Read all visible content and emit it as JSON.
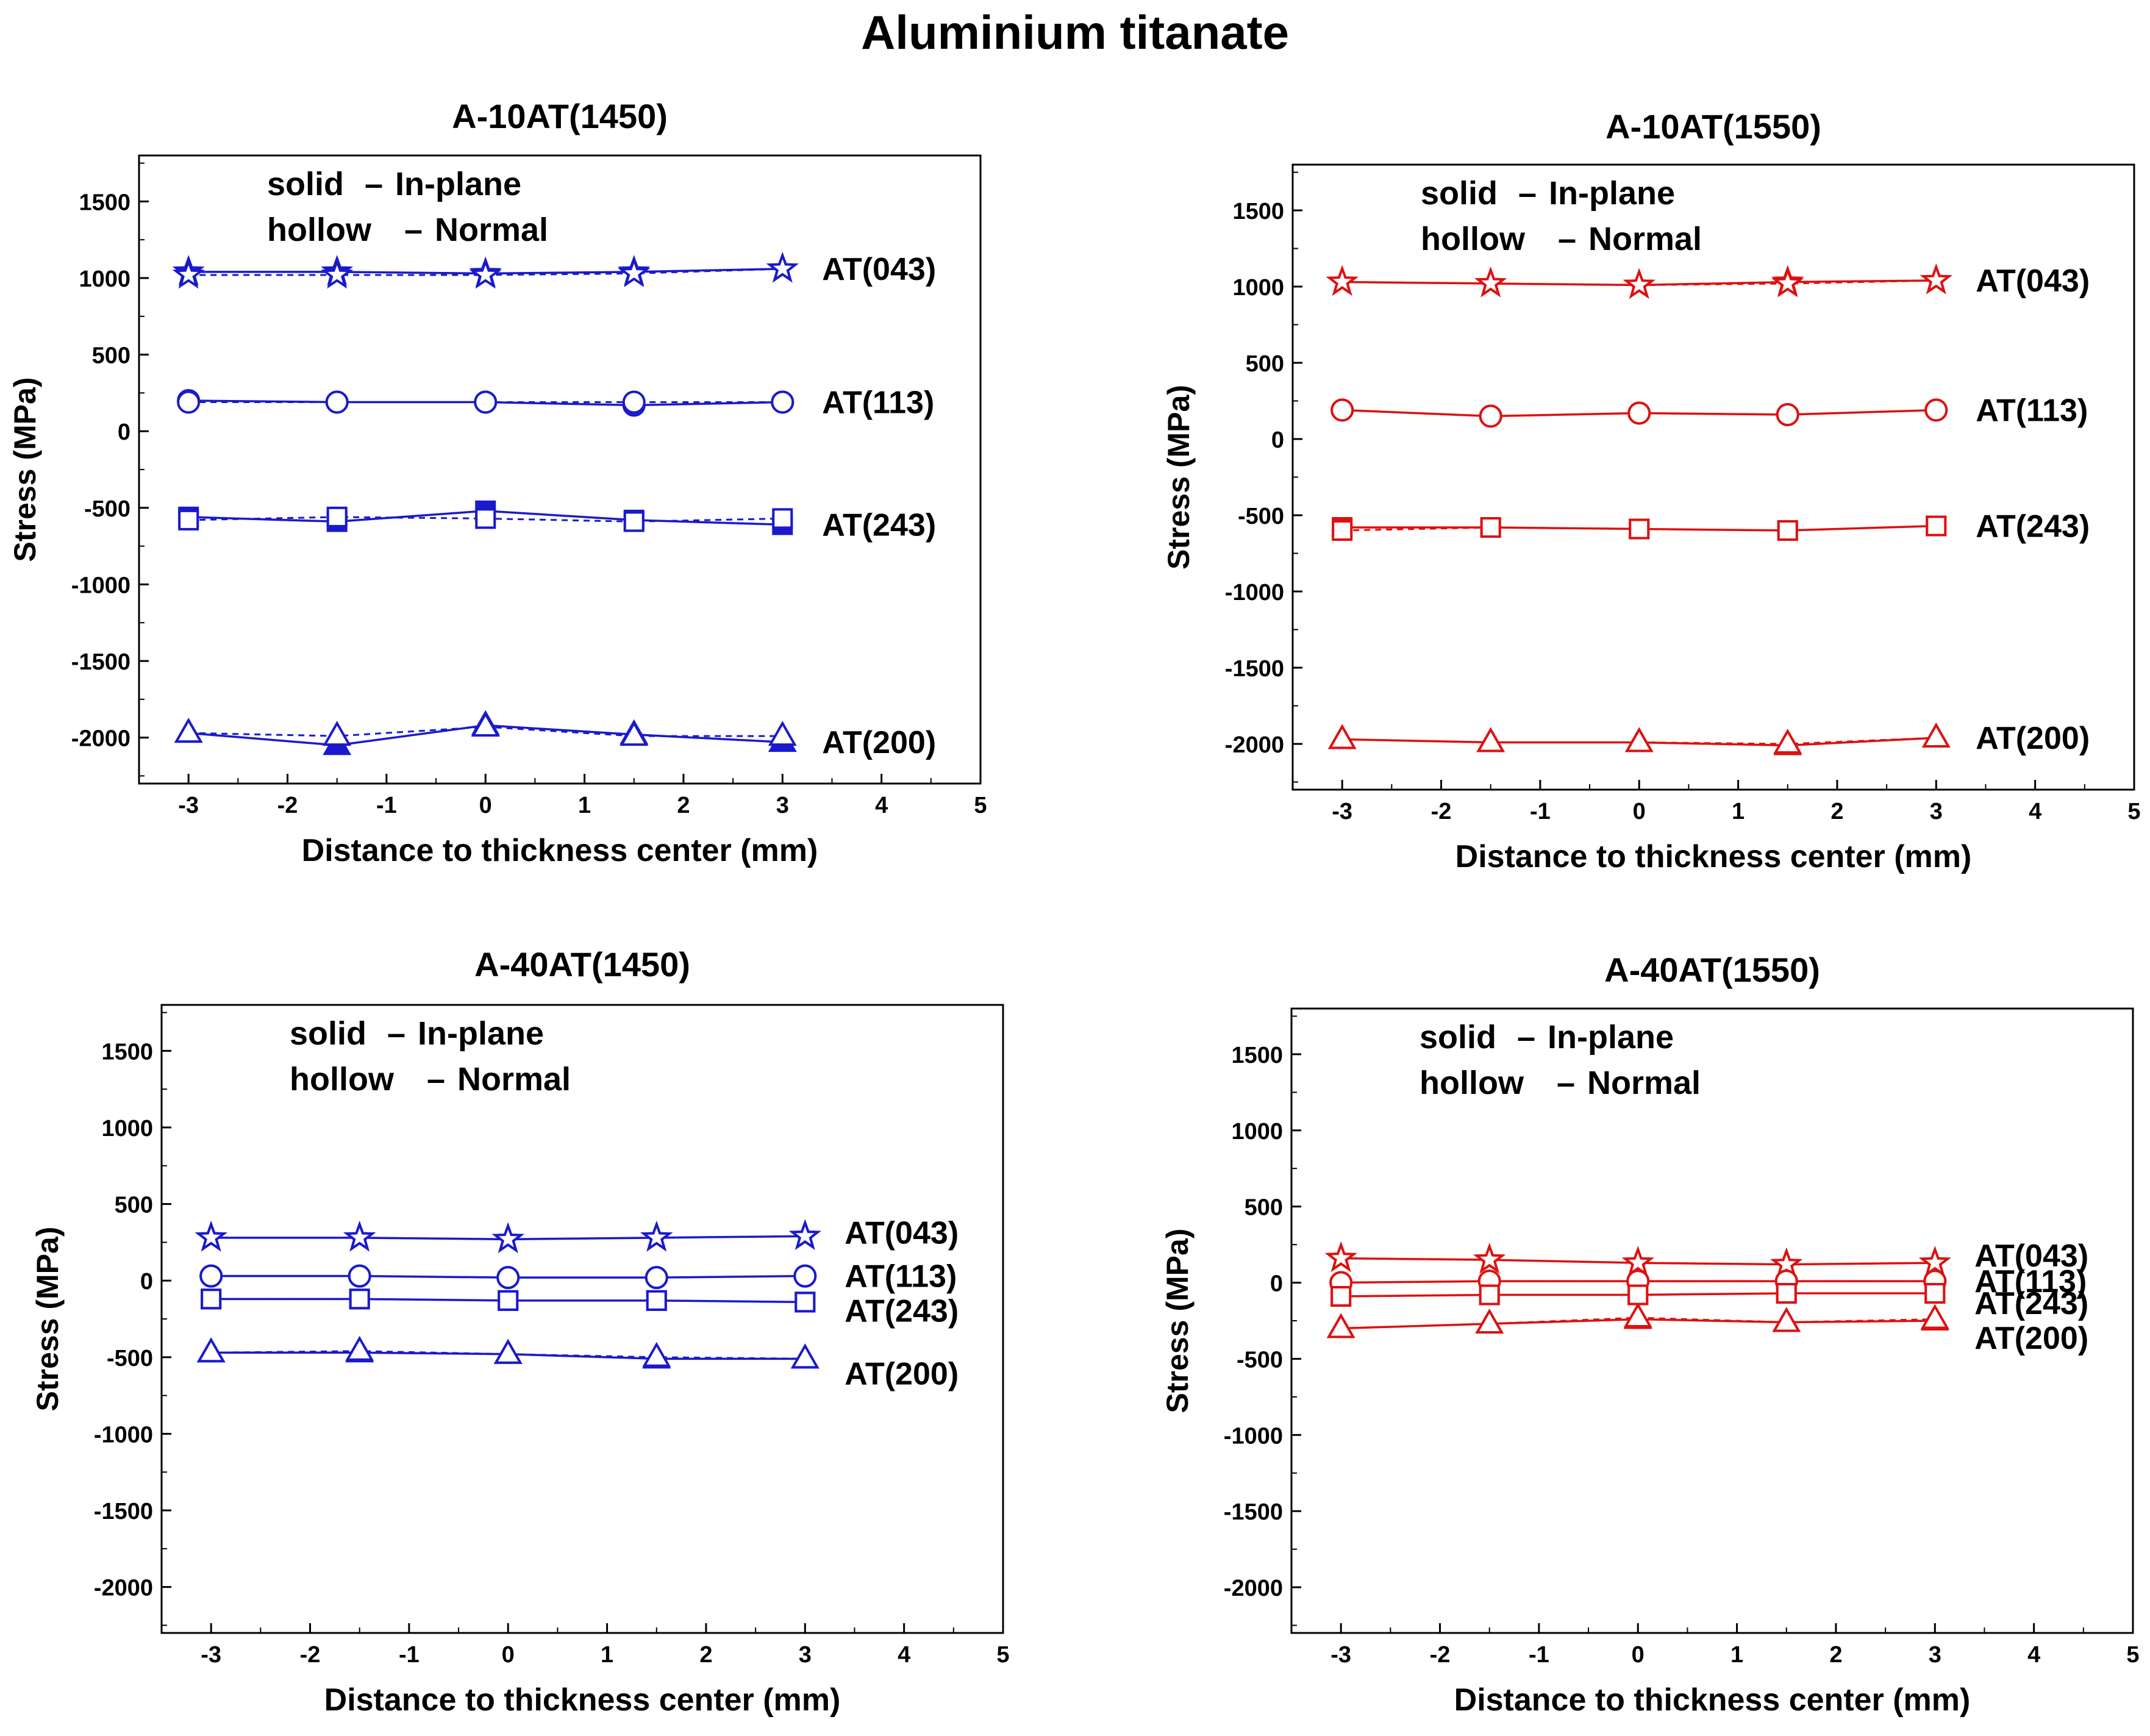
{
  "figure_title": "Aluminium titanate",
  "legend_lines": [
    {
      "fill": "solid",
      "dash": "–",
      "label": "In-plane"
    },
    {
      "fill": "hollow",
      "dash": "–",
      "label": "Normal"
    }
  ],
  "chart_data": [
    {
      "type": "line",
      "title": "A-10AT(1450)",
      "color": "#1a1acc",
      "xlabel": "Distance to thickness center (mm)",
      "ylabel": "Stress (MPa)",
      "xlim": [
        -3.5,
        5
      ],
      "ylim": [
        -2300,
        1800
      ],
      "xticks": [
        -3,
        -2,
        -1,
        0,
        1,
        2,
        3,
        4,
        5
      ],
      "yticks": [
        -2000,
        -1500,
        -1000,
        -500,
        0,
        500,
        1000,
        1500
      ],
      "x": [
        -3,
        -1.5,
        0,
        1.5,
        3
      ],
      "series": [
        {
          "name": "AT(043)",
          "marker": "star",
          "in_plane": [
            1040,
            1040,
            1030,
            1040,
            1060
          ],
          "normal": [
            1020,
            1020,
            1020,
            1030,
            1060
          ]
        },
        {
          "name": "AT(113)",
          "marker": "circle",
          "in_plane": [
            200,
            190,
            190,
            170,
            190
          ],
          "normal": [
            190,
            190,
            190,
            190,
            190
          ]
        },
        {
          "name": "AT(243)",
          "marker": "square",
          "in_plane": [
            -560,
            -590,
            -520,
            -580,
            -610
          ],
          "normal": [
            -580,
            -560,
            -570,
            -590,
            -570
          ]
        },
        {
          "name": "AT(200)",
          "marker": "triangle",
          "in_plane": [
            -1970,
            -2050,
            -1920,
            -1980,
            -2030
          ],
          "normal": [
            -1970,
            -1990,
            -1930,
            -1990,
            -1990
          ]
        }
      ]
    },
    {
      "type": "line",
      "title": "A-10AT(1550)",
      "color": "#dd1111",
      "xlabel": "Distance to thickness center (mm)",
      "ylabel": "Stress (MPa)",
      "xlim": [
        -3.5,
        5
      ],
      "ylim": [
        -2300,
        1800
      ],
      "xticks": [
        -3,
        -2,
        -1,
        0,
        1,
        2,
        3,
        4,
        5
      ],
      "yticks": [
        -2000,
        -1500,
        -1000,
        -500,
        0,
        500,
        1000,
        1500
      ],
      "x": [
        -3,
        -1.5,
        0,
        1.5,
        3
      ],
      "series": [
        {
          "name": "AT(043)",
          "marker": "star",
          "in_plane": [
            1030,
            1020,
            1010,
            1030,
            1040
          ],
          "normal": [
            1030,
            1020,
            1010,
            1020,
            1040
          ]
        },
        {
          "name": "AT(113)",
          "marker": "circle",
          "in_plane": [
            190,
            150,
            170,
            160,
            190
          ],
          "normal": [
            190,
            150,
            170,
            160,
            190
          ]
        },
        {
          "name": "AT(243)",
          "marker": "square",
          "in_plane": [
            -580,
            -580,
            -590,
            -600,
            -570
          ],
          "normal": [
            -600,
            -580,
            -590,
            -600,
            -570
          ]
        },
        {
          "name": "AT(200)",
          "marker": "triangle",
          "in_plane": [
            -1970,
            -1990,
            -1990,
            -2010,
            -1960
          ],
          "normal": [
            -1970,
            -1990,
            -1990,
            -2000,
            -1960
          ]
        }
      ]
    },
    {
      "type": "line",
      "title": "A-40AT(1450)",
      "color": "#1a1acc",
      "xlabel": "Distance to thickness center (mm)",
      "ylabel": "Stress (MPa)",
      "xlim": [
        -3.5,
        5
      ],
      "ylim": [
        -2300,
        1800
      ],
      "xticks": [
        -3,
        -2,
        -1,
        0,
        1,
        2,
        3,
        4,
        5
      ],
      "yticks": [
        -2000,
        -1500,
        -1000,
        -500,
        0,
        500,
        1000,
        1500
      ],
      "x": [
        -3,
        -1.5,
        0,
        1.5,
        3
      ],
      "series": [
        {
          "name": "AT(043)",
          "marker": "star",
          "in_plane": [
            280,
            280,
            270,
            280,
            290
          ],
          "normal": [
            280,
            280,
            270,
            280,
            290
          ]
        },
        {
          "name": "AT(113)",
          "marker": "circle",
          "in_plane": [
            30,
            30,
            20,
            20,
            30
          ],
          "normal": [
            30,
            30,
            20,
            20,
            30
          ]
        },
        {
          "name": "AT(243)",
          "marker": "square",
          "in_plane": [
            -120,
            -120,
            -130,
            -130,
            -140
          ],
          "normal": [
            -120,
            -120,
            -130,
            -130,
            -140
          ]
        },
        {
          "name": "AT(200)",
          "marker": "triangle",
          "in_plane": [
            -470,
            -470,
            -480,
            -510,
            -510
          ],
          "normal": [
            -470,
            -460,
            -480,
            -500,
            -510
          ]
        }
      ]
    },
    {
      "type": "line",
      "title": "A-40AT(1550)",
      "color": "#dd1111",
      "xlabel": "Distance to thickness center (mm)",
      "ylabel": "Stress (MPa)",
      "xlim": [
        -3.5,
        5
      ],
      "ylim": [
        -2300,
        1800
      ],
      "xticks": [
        -3,
        -2,
        -1,
        0,
        1,
        2,
        3,
        4,
        5
      ],
      "yticks": [
        -2000,
        -1500,
        -1000,
        -500,
        0,
        500,
        1000,
        1500
      ],
      "x": [
        -3,
        -1.5,
        0,
        1.5,
        3
      ],
      "series": [
        {
          "name": "AT(043)",
          "marker": "star",
          "in_plane": [
            160,
            150,
            130,
            120,
            130
          ],
          "normal": [
            160,
            150,
            130,
            120,
            130
          ]
        },
        {
          "name": "AT(113)",
          "marker": "circle",
          "in_plane": [
            0,
            10,
            10,
            10,
            10
          ],
          "normal": [
            0,
            10,
            10,
            10,
            10
          ]
        },
        {
          "name": "AT(243)",
          "marker": "square",
          "in_plane": [
            -90,
            -80,
            -80,
            -70,
            -70
          ],
          "normal": [
            -90,
            -80,
            -80,
            -70,
            -70
          ]
        },
        {
          "name": "AT(200)",
          "marker": "triangle",
          "in_plane": [
            -300,
            -270,
            -240,
            -260,
            -250
          ],
          "normal": [
            -300,
            -270,
            -230,
            -260,
            -240
          ]
        }
      ]
    }
  ]
}
